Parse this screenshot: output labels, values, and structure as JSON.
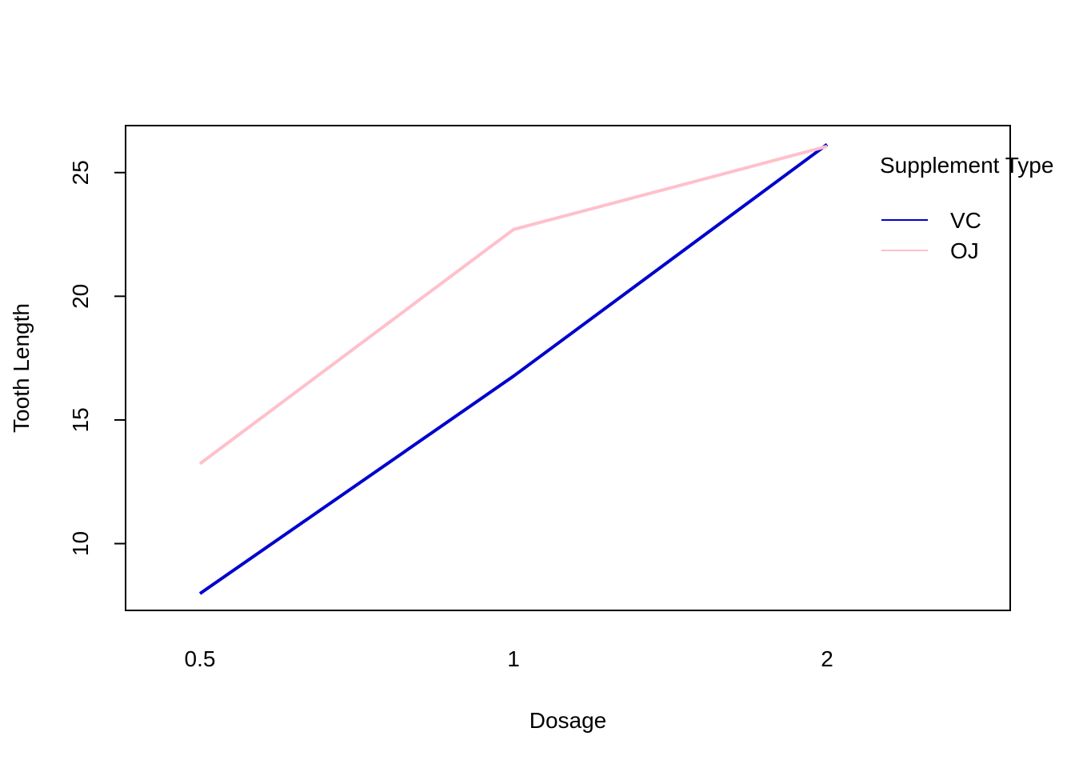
{
  "chart_data": {
    "type": "line",
    "title": "",
    "xlabel": "Dosage",
    "ylabel": "Tooth Length",
    "categories": [
      "0.5",
      "1",
      "2"
    ],
    "yticks": [
      "10",
      "15",
      "20",
      "25"
    ],
    "ylim": [
      7.3,
      26.9
    ],
    "legend": {
      "title": "Supplement Type",
      "placement": "top-right",
      "entries": [
        "VC",
        "OJ"
      ]
    },
    "series": [
      {
        "name": "VC",
        "values": [
          7.98,
          16.77,
          26.14
        ],
        "color": "#0000CD"
      },
      {
        "name": "OJ",
        "values": [
          13.23,
          22.7,
          26.06
        ],
        "color": "#FFC0CB"
      }
    ],
    "grid": false
  }
}
